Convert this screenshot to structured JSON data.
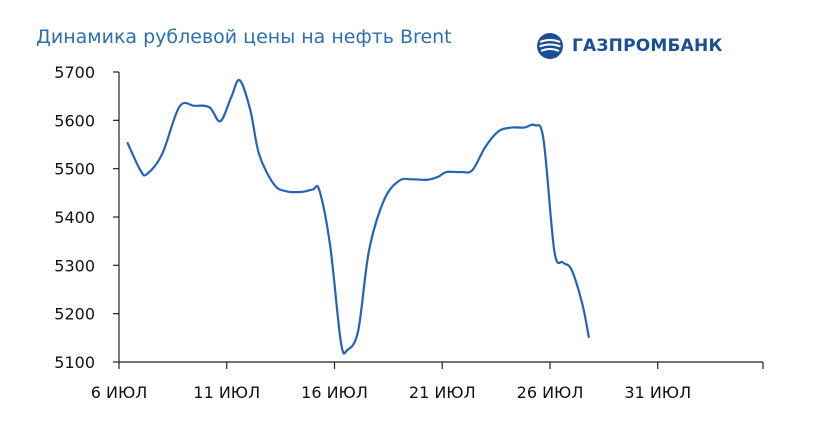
{
  "header": {
    "title": "Динамика рублевой цены на нефть Brent",
    "logo_text": "ГАЗПРОМБАНК",
    "logo_icon": "gazprombank-logo-icon"
  },
  "colors": {
    "title": "#2e6fae",
    "line": "#2563b6",
    "axis": "#222222",
    "brand": "#1b4f93"
  },
  "chart_data": {
    "type": "line",
    "title": "Динамика рублевой цены на нефть Brent",
    "xlabel": "",
    "ylabel": "",
    "ylim": [
      5100,
      5700
    ],
    "yticks": [
      5100,
      5200,
      5300,
      5400,
      5500,
      5600,
      5700
    ],
    "xticks": [
      "6 ИЮЛ",
      "11 ИЮЛ",
      "16 ИЮЛ",
      "21 ИЮЛ",
      "26 ИЮЛ",
      "31 ИЮЛ"
    ],
    "grid": false,
    "legend": "none",
    "x_unit": "day index, 0 = 6 ИЮЛ",
    "series": [
      {
        "values": [
          [
            0.4,
            5553
          ],
          [
            1.0,
            5496
          ],
          [
            1.3,
            5489
          ],
          [
            2.0,
            5530
          ],
          [
            2.8,
            5628
          ],
          [
            3.5,
            5630
          ],
          [
            4.2,
            5627
          ],
          [
            4.7,
            5598
          ],
          [
            5.2,
            5647
          ],
          [
            5.6,
            5683
          ],
          [
            6.1,
            5620
          ],
          [
            6.5,
            5530
          ],
          [
            7.2,
            5467
          ],
          [
            7.8,
            5453
          ],
          [
            8.5,
            5452
          ],
          [
            9.0,
            5457
          ],
          [
            9.3,
            5455
          ],
          [
            9.8,
            5340
          ],
          [
            10.3,
            5140
          ],
          [
            10.6,
            5125
          ],
          [
            11.1,
            5165
          ],
          [
            11.6,
            5330
          ],
          [
            12.3,
            5435
          ],
          [
            13.0,
            5475
          ],
          [
            13.6,
            5478
          ],
          [
            14.3,
            5477
          ],
          [
            14.8,
            5483
          ],
          [
            15.2,
            5493
          ],
          [
            15.9,
            5493
          ],
          [
            16.4,
            5497
          ],
          [
            17.0,
            5545
          ],
          [
            17.6,
            5577
          ],
          [
            18.2,
            5585
          ],
          [
            18.8,
            5585
          ],
          [
            19.3,
            5590
          ],
          [
            19.7,
            5560
          ],
          [
            20.2,
            5330
          ],
          [
            20.6,
            5306
          ],
          [
            21.0,
            5291
          ],
          [
            21.5,
            5220
          ],
          [
            21.8,
            5152
          ]
        ]
      }
    ]
  }
}
